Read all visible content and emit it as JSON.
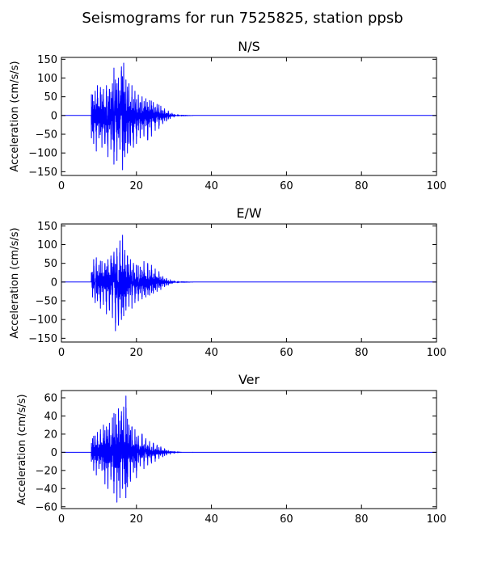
{
  "figure_title": "Seismograms for run 7525825, station ppsb",
  "colors": {
    "trace": "#0000ff",
    "axes": "#000000",
    "background": "#ffffff"
  },
  "chart_data": [
    {
      "type": "line",
      "title": "N/S",
      "xlabel": "",
      "ylabel": "Acceleration (cm/s/s)",
      "xlim": [
        0,
        100
      ],
      "ylim": [
        -160,
        155
      ],
      "xticks": [
        0,
        20,
        40,
        60,
        80,
        100
      ],
      "yticks": [
        -150,
        -100,
        -50,
        0,
        50,
        100,
        150
      ],
      "grid": false,
      "series": [
        {
          "color": "#0000ff",
          "onset": 8.0,
          "x": [
            0,
            7.9,
            8.0,
            8.3,
            8.6,
            9.0,
            9.3,
            9.6,
            10.0,
            10.4,
            10.8,
            11.2,
            11.6,
            12.0,
            12.4,
            12.8,
            13.2,
            13.6,
            14.0,
            14.4,
            14.8,
            15.2,
            15.6,
            16.0,
            16.3,
            16.6,
            16.9,
            17.2,
            17.6,
            18.0,
            18.4,
            18.8,
            19.2,
            19.6,
            20.0,
            20.5,
            21.0,
            21.5,
            22.0,
            22.5,
            23.0,
            23.5,
            24.0,
            24.5,
            25.0,
            25.5,
            26.0,
            26.5,
            27.0,
            27.5,
            28.0,
            28.5,
            29.0,
            29.5,
            30.0,
            31.0,
            32.0,
            35.0,
            100
          ],
          "y": [
            0,
            0,
            -60,
            55,
            -75,
            65,
            -95,
            80,
            -60,
            75,
            -85,
            70,
            -75,
            80,
            -110,
            70,
            -90,
            85,
            -130,
            95,
            -120,
            100,
            -90,
            130,
            -145,
            140,
            -110,
            95,
            -100,
            85,
            -80,
            80,
            -85,
            65,
            -75,
            55,
            -60,
            50,
            -55,
            45,
            -65,
            40,
            -55,
            35,
            -40,
            30,
            -35,
            25,
            -22,
            18,
            -15,
            12,
            -8,
            6,
            -4,
            2,
            -1,
            0,
            0
          ]
        }
      ]
    },
    {
      "type": "line",
      "title": "E/W",
      "xlabel": "",
      "ylabel": "Acceleration (cm/s/s)",
      "xlim": [
        0,
        100
      ],
      "ylim": [
        -160,
        155
      ],
      "xticks": [
        0,
        20,
        40,
        60,
        80,
        100
      ],
      "yticks": [
        -150,
        -100,
        -50,
        0,
        50,
        100,
        150
      ],
      "grid": false,
      "series": [
        {
          "color": "#0000ff",
          "onset": 8.0,
          "x": [
            0,
            7.9,
            8.0,
            8.3,
            8.6,
            9.0,
            9.3,
            9.6,
            10.0,
            10.4,
            10.8,
            11.2,
            11.6,
            12.0,
            12.4,
            12.8,
            13.2,
            13.6,
            14.0,
            14.4,
            14.8,
            15.2,
            15.6,
            16.0,
            16.3,
            16.6,
            16.9,
            17.2,
            17.6,
            18.0,
            18.4,
            18.8,
            19.2,
            19.6,
            20.0,
            20.5,
            21.0,
            21.5,
            22.0,
            22.5,
            23.0,
            23.5,
            24.0,
            24.5,
            25.0,
            25.5,
            26.0,
            26.5,
            27.0,
            27.5,
            28.0,
            28.5,
            29.0,
            29.5,
            30.0,
            31.0,
            32.0,
            35.0,
            100
          ],
          "y": [
            0,
            0,
            25,
            -40,
            60,
            -55,
            65,
            -50,
            45,
            -70,
            55,
            -60,
            50,
            -85,
            60,
            -75,
            70,
            -95,
            80,
            -130,
            90,
            -115,
            110,
            -100,
            125,
            -90,
            85,
            -75,
            70,
            -65,
            60,
            -70,
            50,
            -55,
            45,
            -50,
            40,
            -45,
            55,
            -40,
            50,
            -35,
            45,
            -30,
            35,
            -25,
            28,
            -20,
            15,
            -12,
            10,
            -8,
            6,
            -4,
            3,
            -2,
            1,
            0,
            0
          ]
        }
      ]
    },
    {
      "type": "line",
      "title": "Ver",
      "xlabel": "",
      "ylabel": "Acceleration (cm/s/s)",
      "xlim": [
        0,
        100
      ],
      "ylim": [
        -62,
        68
      ],
      "xticks": [
        0,
        20,
        40,
        60,
        80,
        100
      ],
      "yticks": [
        -60,
        -40,
        -20,
        0,
        20,
        40,
        60
      ],
      "grid": false,
      "series": [
        {
          "color": "#0000ff",
          "onset": 8.0,
          "x": [
            0,
            7.9,
            8.0,
            8.3,
            8.6,
            9.0,
            9.3,
            9.6,
            10.0,
            10.4,
            10.8,
            11.2,
            11.6,
            12.0,
            12.4,
            12.8,
            13.2,
            13.6,
            14.0,
            14.4,
            14.8,
            15.2,
            15.6,
            16.0,
            16.3,
            16.6,
            16.9,
            17.2,
            17.6,
            18.0,
            18.4,
            18.8,
            19.2,
            19.6,
            20.0,
            20.5,
            21.0,
            21.5,
            22.0,
            22.5,
            23.0,
            23.5,
            24.0,
            24.5,
            25.0,
            25.5,
            26.0,
            26.5,
            27.0,
            27.5,
            28.0,
            28.5,
            29.0,
            29.5,
            30.0,
            31.0,
            32.0,
            35.0,
            100
          ],
          "y": [
            0,
            0,
            -10,
            15,
            -20,
            18,
            -25,
            22,
            -18,
            25,
            -20,
            30,
            -35,
            28,
            -40,
            32,
            -30,
            38,
            -45,
            42,
            -55,
            48,
            -50,
            45,
            -40,
            50,
            -35,
            62,
            -38,
            30,
            -32,
            28,
            -22,
            25,
            -28,
            18,
            -15,
            20,
            -18,
            15,
            -14,
            12,
            -12,
            10,
            -10,
            8,
            -7,
            6,
            -5,
            4,
            -3,
            2,
            -2,
            1,
            -1,
            0.5,
            0,
            0,
            0
          ]
        }
      ]
    }
  ]
}
